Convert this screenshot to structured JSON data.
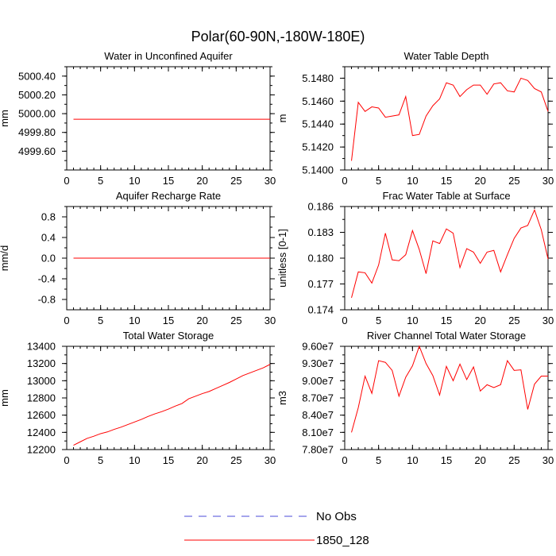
{
  "figure_title": "Polar(60-90N,-180W-180E)",
  "colors": {
    "model": "#ff0000",
    "obs": "#4b4bd8",
    "axis": "#000000",
    "background": "#ffffff"
  },
  "legend": {
    "obs_label": "No Obs",
    "model_label": "1850_128"
  },
  "chart_data": [
    {
      "type": "line",
      "title": "Water in Unconfined Aquifer",
      "ylabel": "mm",
      "xlim": [
        0,
        30
      ],
      "ylim": [
        4999.4,
        5000.5
      ],
      "xticks": [
        0,
        5,
        10,
        15,
        20,
        25,
        30
      ],
      "yticks": [
        4999.6,
        4999.8,
        5000.0,
        5000.2,
        5000.4
      ],
      "ytick_labels": [
        "4999.60",
        "4999.80",
        "5000.00",
        "5000.20",
        "5000.40"
      ],
      "series": [
        {
          "name": "1850_128",
          "x": [
            1,
            2,
            3,
            4,
            5,
            6,
            7,
            8,
            9,
            10,
            11,
            12,
            13,
            14,
            15,
            16,
            17,
            18,
            19,
            20,
            21,
            22,
            23,
            24,
            25,
            26,
            27,
            28,
            29,
            30
          ],
          "values": [
            4999.94,
            4999.94,
            4999.94,
            4999.94,
            4999.94,
            4999.94,
            4999.94,
            4999.94,
            4999.94,
            4999.94,
            4999.94,
            4999.94,
            4999.94,
            4999.94,
            4999.94,
            4999.94,
            4999.94,
            4999.94,
            4999.94,
            4999.94,
            4999.94,
            4999.94,
            4999.94,
            4999.94,
            4999.94,
            4999.94,
            4999.94,
            4999.94,
            4999.94,
            4999.94
          ]
        }
      ]
    },
    {
      "type": "line",
      "title": "Water Table Depth",
      "ylabel": "m",
      "xlim": [
        0,
        30
      ],
      "ylim": [
        5.14,
        5.149
      ],
      "xticks": [
        0,
        5,
        10,
        15,
        20,
        25,
        30
      ],
      "yticks": [
        5.14,
        5.142,
        5.144,
        5.146,
        5.148
      ],
      "ytick_labels": [
        "5.1400",
        "5.1420",
        "5.1440",
        "5.1460",
        "5.1480"
      ],
      "series": [
        {
          "name": "1850_128",
          "x": [
            1,
            2,
            3,
            4,
            5,
            6,
            7,
            8,
            9,
            10,
            11,
            12,
            13,
            14,
            15,
            16,
            17,
            18,
            19,
            20,
            21,
            22,
            23,
            24,
            25,
            26,
            27,
            28,
            29,
            30
          ],
          "values": [
            5.1408,
            5.1459,
            5.1451,
            5.1455,
            5.1454,
            5.1446,
            5.1447,
            5.1448,
            5.1464,
            5.143,
            5.1431,
            5.1447,
            5.1456,
            5.1462,
            5.1476,
            5.1474,
            5.1464,
            5.147,
            5.1474,
            5.1474,
            5.1466,
            5.1475,
            5.1476,
            5.1469,
            5.1468,
            5.148,
            5.1478,
            5.1471,
            5.1468,
            5.1451
          ]
        }
      ]
    },
    {
      "type": "line",
      "title": "Aquifer Recharge Rate",
      "ylabel": "mm/d",
      "xlim": [
        0,
        30
      ],
      "ylim": [
        -1.0,
        1.0
      ],
      "xticks": [
        0,
        5,
        10,
        15,
        20,
        25,
        30
      ],
      "yticks": [
        -0.8,
        -0.4,
        0.0,
        0.4,
        0.8
      ],
      "ytick_labels": [
        "-0.8",
        "-0.4",
        "0.0",
        "0.4",
        "0.8"
      ],
      "series": [
        {
          "name": "1850_128",
          "x": [
            1,
            2,
            3,
            4,
            5,
            6,
            7,
            8,
            9,
            10,
            11,
            12,
            13,
            14,
            15,
            16,
            17,
            18,
            19,
            20,
            21,
            22,
            23,
            24,
            25,
            26,
            27,
            28,
            29,
            30
          ],
          "values": [
            0,
            0,
            0,
            0,
            0,
            0,
            0,
            0,
            0,
            0,
            0,
            0,
            0,
            0,
            0,
            0,
            0,
            0,
            0,
            0,
            0,
            0,
            0,
            0,
            0,
            0,
            0,
            0,
            0,
            0
          ]
        }
      ]
    },
    {
      "type": "line",
      "title": "Frac Water Table at Surface",
      "ylabel": "unitless [0-1]",
      "xlim": [
        0,
        30
      ],
      "ylim": [
        0.174,
        0.186
      ],
      "xticks": [
        0,
        5,
        10,
        15,
        20,
        25,
        30
      ],
      "yticks": [
        0.174,
        0.177,
        0.18,
        0.183,
        0.186
      ],
      "ytick_labels": [
        "0.174",
        "0.177",
        "0.180",
        "0.183",
        "0.186"
      ],
      "series": [
        {
          "name": "1850_128",
          "x": [
            1,
            2,
            3,
            4,
            5,
            6,
            7,
            8,
            9,
            10,
            11,
            12,
            13,
            14,
            15,
            16,
            17,
            18,
            19,
            20,
            21,
            22,
            23,
            24,
            25,
            26,
            27,
            28,
            29,
            30
          ],
          "values": [
            0.1754,
            0.1784,
            0.1783,
            0.1771,
            0.1792,
            0.1829,
            0.1798,
            0.1797,
            0.1804,
            0.1832,
            0.181,
            0.1782,
            0.182,
            0.1817,
            0.1834,
            0.1829,
            0.1789,
            0.1811,
            0.1807,
            0.1794,
            0.1807,
            0.1809,
            0.1784,
            0.1804,
            0.1823,
            0.1835,
            0.1838,
            0.1856,
            0.1833,
            0.1799
          ]
        }
      ]
    },
    {
      "type": "line",
      "title": "Total Water Storage",
      "ylabel": "mm",
      "xlim": [
        0,
        30
      ],
      "ylim": [
        12200,
        13400
      ],
      "xticks": [
        0,
        5,
        10,
        15,
        20,
        25,
        30
      ],
      "yticks": [
        12200,
        12400,
        12600,
        12800,
        13000,
        13200,
        13400
      ],
      "ytick_labels": [
        "12200",
        "12400",
        "12600",
        "12800",
        "13000",
        "13200",
        "13400"
      ],
      "series": [
        {
          "name": "1850_128",
          "x": [
            1,
            2,
            3,
            4,
            5,
            6,
            7,
            8,
            9,
            10,
            11,
            12,
            13,
            14,
            15,
            16,
            17,
            18,
            19,
            20,
            21,
            22,
            23,
            24,
            25,
            26,
            27,
            28,
            29,
            30
          ],
          "values": [
            12250,
            12290,
            12330,
            12355,
            12385,
            12405,
            12435,
            12460,
            12490,
            12520,
            12550,
            12585,
            12615,
            12640,
            12670,
            12705,
            12735,
            12790,
            12820,
            12850,
            12875,
            12910,
            12945,
            12980,
            13020,
            13060,
            13090,
            13120,
            13150,
            13190
          ]
        }
      ]
    },
    {
      "type": "line",
      "title": "River Channel Total Water Storage",
      "ylabel": "m3",
      "xlim": [
        0,
        30
      ],
      "ylim": [
        78000000,
        96000000
      ],
      "xticks": [
        0,
        5,
        10,
        15,
        20,
        25,
        30
      ],
      "yticks": [
        78000000,
        81000000,
        84000000,
        87000000,
        90000000,
        93000000,
        96000000
      ],
      "ytick_labels": [
        "7.80e7",
        "8.10e7",
        "8.40e7",
        "8.70e7",
        "9.00e7",
        "9.30e7",
        "9.60e7"
      ],
      "series": [
        {
          "name": "1850_128",
          "x": [
            1,
            2,
            3,
            4,
            5,
            6,
            7,
            8,
            9,
            10,
            11,
            12,
            13,
            14,
            15,
            16,
            17,
            18,
            19,
            20,
            21,
            22,
            23,
            24,
            25,
            26,
            27,
            28,
            29,
            30
          ],
          "values": [
            81000000,
            85300000,
            90800000,
            87800000,
            93500000,
            93200000,
            91800000,
            87300000,
            90600000,
            92600000,
            96000000,
            93000000,
            90900000,
            87500000,
            92500000,
            90000000,
            92900000,
            90200000,
            92400000,
            88200000,
            89300000,
            88800000,
            89300000,
            93500000,
            91800000,
            91900000,
            85000000,
            89400000,
            90800000,
            90800000
          ]
        }
      ]
    }
  ]
}
